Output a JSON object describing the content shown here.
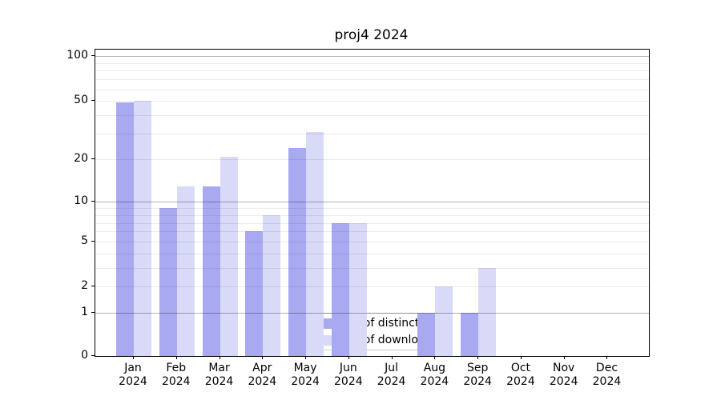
{
  "chart_data": {
    "type": "bar",
    "title": "proj4 2024",
    "year": "2024",
    "categories": [
      "Jan",
      "Feb",
      "Mar",
      "Apr",
      "May",
      "Jun",
      "Jul",
      "Aug",
      "Sep",
      "Oct",
      "Nov",
      "Dec"
    ],
    "series": [
      {
        "name": "Nb of distinct IPs",
        "color": "#a9a9f1",
        "values": [
          49,
          9,
          13,
          6,
          24,
          7,
          0,
          1,
          1,
          0,
          0,
          0
        ]
      },
      {
        "name": "Nb of downloads",
        "color": "#d9d9f8",
        "values": [
          50,
          13,
          21,
          8,
          31,
          7,
          0,
          2,
          3,
          0,
          0,
          0
        ]
      }
    ],
    "y_ticks": [
      0,
      1,
      2,
      5,
      10,
      20,
      50,
      100
    ],
    "y_minor_gridlines": [
      2,
      3,
      4,
      5,
      6,
      7,
      8,
      9,
      20,
      30,
      40,
      50,
      60,
      70,
      80,
      90
    ],
    "y_major_gridlines": [
      1,
      10,
      100
    ],
    "y_scale": "log1p",
    "ylim": [
      0,
      110
    ],
    "grid": true,
    "legend_position": "lower center",
    "colors": {
      "major_grid": "#b4b4b4",
      "minor_grid": "#ececec",
      "axis": "#000000",
      "background": "#ffffff"
    }
  }
}
